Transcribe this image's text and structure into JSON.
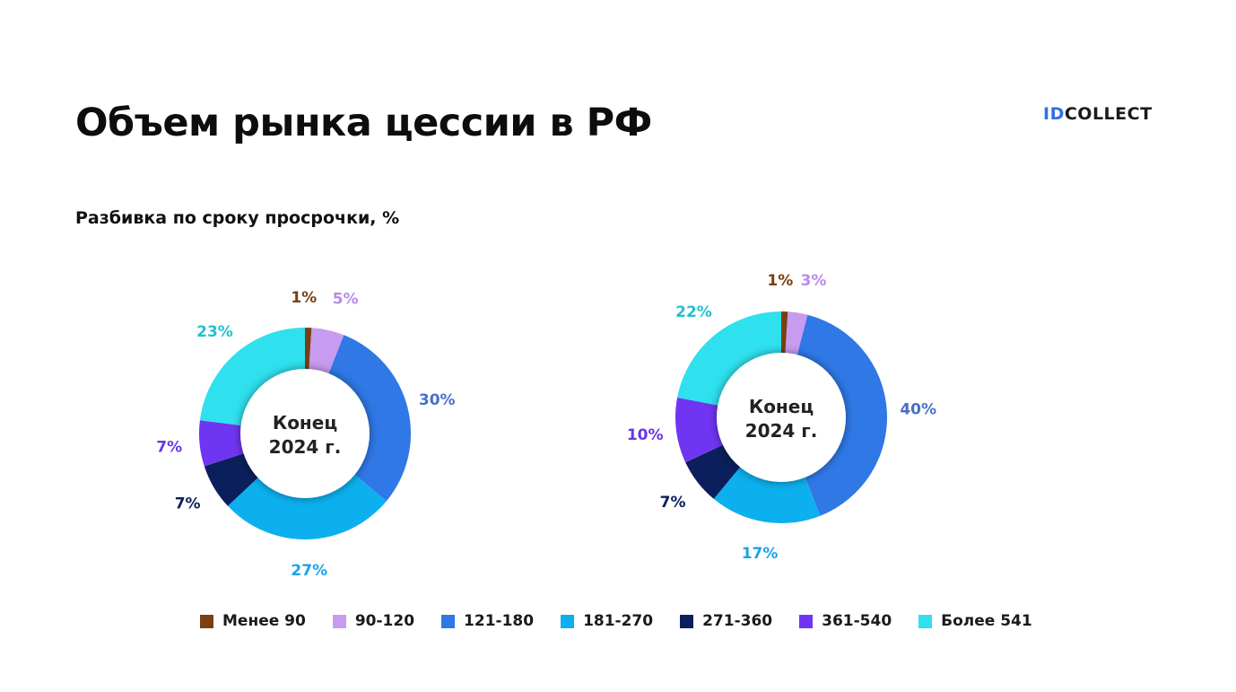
{
  "header": {
    "title": "Объем рынка цессии в РФ",
    "subtitle": "Разбивка по сроку просрочки, %",
    "logo_id": "ID",
    "logo_rest": "COLLECT"
  },
  "colors": {
    "logo_blue": "#2f6fe0"
  },
  "chart_data": [
    {
      "type": "pie",
      "donut": true,
      "center_label": [
        "Конец",
        "2024 г."
      ],
      "categories": [
        "Менее 90",
        "90-120",
        "121-180",
        "181-270",
        "271-360",
        "361-540",
        "Более 541"
      ],
      "values": [
        1,
        5,
        30,
        27,
        7,
        7,
        23
      ],
      "labels": [
        "1%",
        "5%",
        "30%",
        "27%",
        "7%",
        "7%",
        "23%"
      ],
      "colors": [
        "#7a3f12",
        "#c79cf0",
        "#2f78e6",
        "#0cb0ef",
        "#0b1f5c",
        "#7035f2",
        "#2fe0ee"
      ],
      "label_colors": [
        "#7a3f12",
        "#b88be8",
        "#4a6fc9",
        "#1aa4e6",
        "#0b1f5c",
        "#6a35e8",
        "#23c0d0"
      ]
    },
    {
      "type": "pie",
      "donut": true,
      "center_label": [
        "Конец",
        "2024 г."
      ],
      "categories": [
        "Менее 90",
        "90-120",
        "121-180",
        "181-270",
        "271-360",
        "361-540",
        "Более 541"
      ],
      "values": [
        1,
        3,
        40,
        17,
        7,
        10,
        22
      ],
      "labels": [
        "1%",
        "3%",
        "40%",
        "17%",
        "7%",
        "10%",
        "22%"
      ],
      "colors": [
        "#7a3f12",
        "#c79cf0",
        "#2f78e6",
        "#0cb0ef",
        "#0b1f5c",
        "#7035f2",
        "#2fe0ee"
      ],
      "label_colors": [
        "#7a3f12",
        "#b88be8",
        "#4a6fc9",
        "#1aa4e6",
        "#0b1f5c",
        "#6a35e8",
        "#23c0d0"
      ]
    }
  ],
  "legend": {
    "position": "bottom",
    "items": [
      {
        "label": "Менее 90",
        "color": "#7a3f12"
      },
      {
        "label": "90-120",
        "color": "#c79cf0"
      },
      {
        "label": "121-180",
        "color": "#2f78e6"
      },
      {
        "label": "181-270",
        "color": "#0cb0ef"
      },
      {
        "label": "271-360",
        "color": "#0b1f5c"
      },
      {
        "label": "361-540",
        "color": "#7035f2"
      },
      {
        "label": "Более 541",
        "color": "#2fe0ee"
      }
    ]
  }
}
